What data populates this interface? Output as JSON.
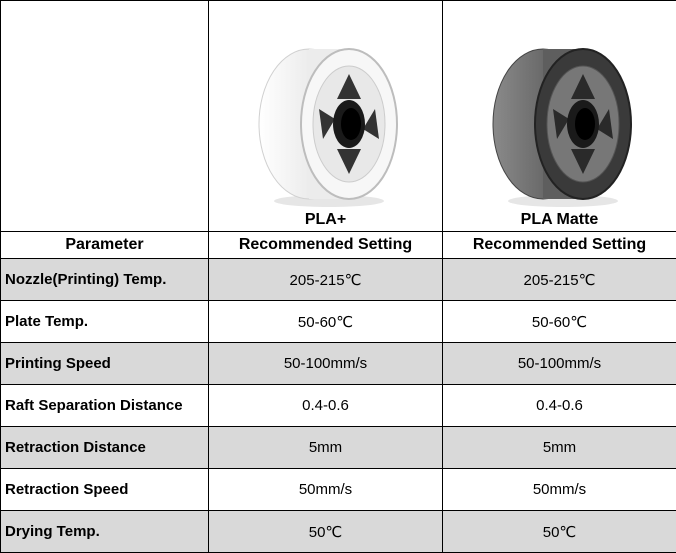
{
  "header": {
    "parameter_label": "Parameter",
    "products": [
      {
        "name": "PLA+",
        "subtitle": "Recommended Setting",
        "spool_icon": "white-filament-spool-icon",
        "color": "#f2f2f2"
      },
      {
        "name": "PLA Matte",
        "subtitle": "Recommended Setting",
        "spool_icon": "gray-filament-spool-icon",
        "color": "#6e6e6e"
      }
    ]
  },
  "rows": [
    {
      "param": "Nozzle(Printing) Temp.",
      "pla_plus": "205-215℃",
      "pla_matte": "205-215℃",
      "shaded": true
    },
    {
      "param": "Plate Temp.",
      "pla_plus": "50-60℃",
      "pla_matte": "50-60℃",
      "shaded": false
    },
    {
      "param": "Printing Speed",
      "pla_plus": "50-100mm/s",
      "pla_matte": "50-100mm/s",
      "shaded": true
    },
    {
      "param": "Raft Separation Distance",
      "pla_plus": "0.4-0.6",
      "pla_matte": "0.4-0.6",
      "shaded": false
    },
    {
      "param": "Retraction Distance",
      "pla_plus": "5mm",
      "pla_matte": "5mm",
      "shaded": true
    },
    {
      "param": "Retraction Speed",
      "pla_plus": "50mm/s",
      "pla_matte": "50mm/s",
      "shaded": false
    },
    {
      "param": "Drying Temp.",
      "pla_plus": "50℃",
      "pla_matte": "50℃",
      "shaded": true
    }
  ],
  "colors": {
    "shade": "#d9d9d9",
    "border": "#000000"
  }
}
